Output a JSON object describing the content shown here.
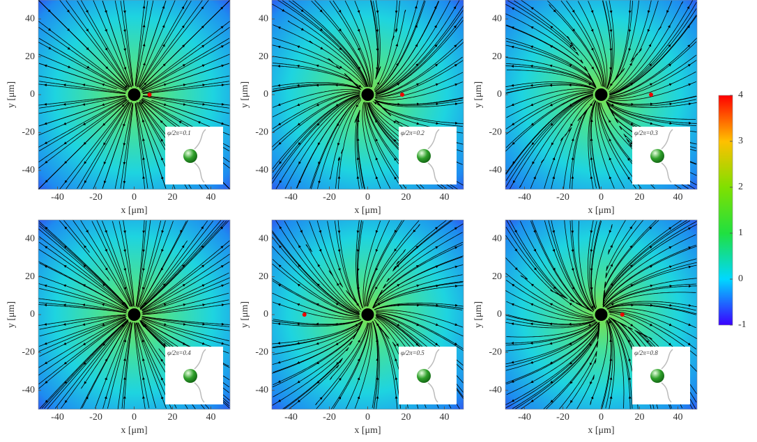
{
  "chart_data": [
    {
      "type": "stream",
      "xlabel": "x [μm]",
      "ylabel": "y [μm]",
      "xlim": [
        -50,
        50
      ],
      "ylim": [
        -50,
        50
      ],
      "xticks": [
        -40,
        -20,
        0,
        20,
        40
      ],
      "yticks": [
        -40,
        -20,
        0,
        20,
        40
      ],
      "inset_label": "φ/2π=0.1",
      "markers": {
        "x": [
          8
        ],
        "y": [
          0
        ]
      }
    },
    {
      "type": "stream",
      "xlabel": "x [μm]",
      "ylabel": "y [μm]",
      "xlim": [
        -50,
        50
      ],
      "ylim": [
        -50,
        50
      ],
      "xticks": [
        -40,
        -20,
        0,
        20,
        40
      ],
      "yticks": [
        -40,
        -20,
        0,
        20,
        40
      ],
      "inset_label": "φ/2π=0.2",
      "markers": {
        "x": [
          18
        ],
        "y": [
          0
        ]
      }
    },
    {
      "type": "stream",
      "xlabel": "x [μm]",
      "ylabel": "y [μm]",
      "xlim": [
        -50,
        50
      ],
      "ylim": [
        -50,
        50
      ],
      "xticks": [
        -40,
        -20,
        0,
        20,
        40
      ],
      "yticks": [
        -40,
        -20,
        0,
        20,
        40
      ],
      "inset_label": "φ/2π=0.3",
      "markers": {
        "x": [
          26
        ],
        "y": [
          0
        ]
      }
    },
    {
      "type": "stream",
      "xlabel": "x [μm]",
      "ylabel": "y [μm]",
      "xlim": [
        -50,
        50
      ],
      "ylim": [
        -50,
        50
      ],
      "xticks": [
        -40,
        -20,
        0,
        20,
        40
      ],
      "yticks": [
        -40,
        -20,
        0,
        20,
        40
      ],
      "inset_label": "φ/2π=0.4"
    },
    {
      "type": "stream",
      "xlabel": "x [μm]",
      "ylabel": "y [μm]",
      "xlim": [
        -50,
        50
      ],
      "ylim": [
        -50,
        50
      ],
      "xticks": [
        -40,
        -20,
        0,
        20,
        40
      ],
      "yticks": [
        -40,
        -20,
        0,
        20,
        40
      ],
      "inset_label": "φ/2π=0.5",
      "markers": {
        "x": [
          -33
        ],
        "y": [
          0
        ]
      }
    },
    {
      "type": "stream",
      "xlabel": "x [μm]",
      "ylabel": "y [μm]",
      "xlim": [
        -50,
        50
      ],
      "ylim": [
        -50,
        50
      ],
      "xticks": [
        -40,
        -20,
        0,
        20,
        40
      ],
      "yticks": [
        -40,
        -20,
        0,
        20,
        40
      ],
      "inset_label": "φ/2π=0.8",
      "markers": {
        "x": [
          11
        ],
        "y": [
          0
        ]
      }
    },
    {
      "type": "colorbar",
      "ylim": [
        -1,
        4
      ],
      "yticks": [
        -1,
        0,
        1,
        2,
        3,
        4
      ]
    }
  ]
}
